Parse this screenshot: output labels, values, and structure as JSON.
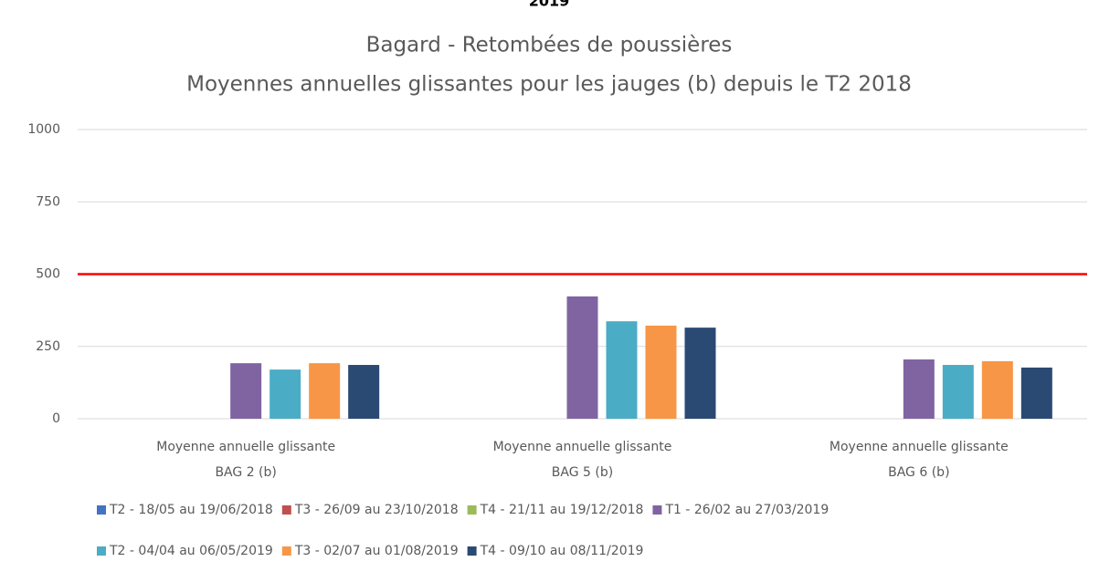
{
  "cropped_text": "2019",
  "chart_data": {
    "type": "bar",
    "title": [
      "Bagard - Retombées de poussières",
      "Moyennes annuelles glissantes pour les jauges (b) depuis le T2 2018"
    ],
    "categories": [
      [
        "Moyenne annuelle glissante",
        "BAG 2 (b)"
      ],
      [
        "Moyenne annuelle glissante",
        "BAG 5 (b)"
      ],
      [
        "Moyenne annuelle glissante",
        "BAG 6 (b)"
      ]
    ],
    "series": [
      {
        "name": "T2 - 18/05 au 19/06/2018",
        "color": "#4472c4",
        "values": [
          null,
          null,
          null
        ]
      },
      {
        "name": "T3 - 26/09 au 23/10/2018",
        "color": "#c0504d",
        "values": [
          null,
          null,
          null
        ]
      },
      {
        "name": "T4 - 21/11 au 19/12/2018",
        "color": "#9bbb59",
        "values": [
          null,
          null,
          null
        ]
      },
      {
        "name": "T1 - 26/02 au 27/03/2019",
        "color": "#8064a2",
        "values": [
          192,
          423,
          205
        ]
      },
      {
        "name": "T2 - 04/04 au 06/05/2019",
        "color": "#4bacc6",
        "values": [
          170,
          337,
          186
        ]
      },
      {
        "name": "T3 - 02/07 au 01/08/2019",
        "color": "#f79646",
        "values": [
          192,
          322,
          199
        ]
      },
      {
        "name": "T4 - 09/10 au 08/11/2019",
        "color": "#2a4a74",
        "values": [
          186,
          315,
          177
        ]
      }
    ],
    "ylim": [
      0,
      1000
    ],
    "yticks": [
      0,
      250,
      500,
      750,
      1000
    ],
    "grid": true,
    "reference_line": {
      "value": 500,
      "color": "#ff0000"
    },
    "legend": "bottom"
  }
}
